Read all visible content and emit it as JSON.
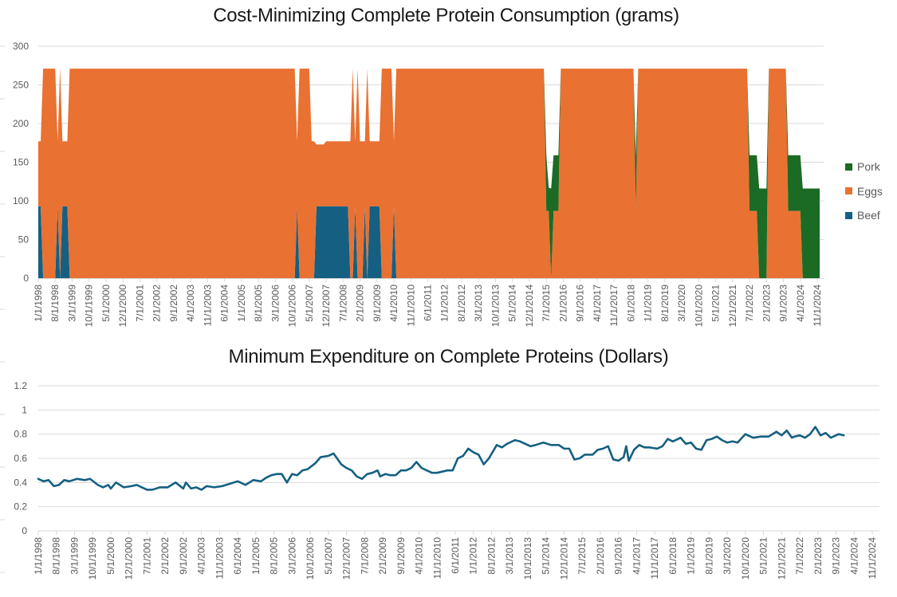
{
  "charts": [
    {
      "id": "top",
      "title": "Cost-Minimizing Complete Protein Consumption (grams)"
    },
    {
      "id": "bottom",
      "title": "Minimum Expenditure on Complete Proteins (Dollars)"
    }
  ],
  "legend": [
    {
      "name": "Pork",
      "color": "#1b6b25"
    },
    {
      "name": "Eggs",
      "color": "#e97132"
    },
    {
      "name": "Beef",
      "color": "#156082"
    }
  ],
  "chart_data": [
    {
      "type": "area",
      "stacked": true,
      "title": "Cost-Minimizing Complete Protein Consumption (grams)",
      "xlabel": "",
      "ylabel": "",
      "ylim": [
        0,
        300
      ],
      "yticks": [
        0,
        50,
        100,
        150,
        200,
        250,
        300
      ],
      "grid": true,
      "legend_position": "right",
      "x_start": "1/1/1998",
      "x_frequency": "monthly",
      "x_tick_every_months": 7,
      "xtick_labels": [
        "1/1/1998",
        "8/1/1998",
        "3/1/1999",
        "10/1/1999",
        "5/1/2000",
        "12/1/2000",
        "7/1/2001",
        "2/1/2002",
        "9/1/2002",
        "4/1/2003",
        "11/1/2003",
        "6/1/2004",
        "1/1/2005",
        "8/1/2005",
        "3/1/2006",
        "10/1/2006",
        "5/1/2007",
        "12/1/2007",
        "7/1/2008",
        "2/1/2009",
        "9/1/2009",
        "4/1/2010",
        "11/1/2010",
        "6/1/2011",
        "1/1/2012",
        "8/1/2012",
        "3/1/2013",
        "10/1/2013",
        "5/1/2014",
        "12/1/2014",
        "7/1/2015",
        "2/1/2016",
        "9/1/2016",
        "4/1/2017",
        "11/1/2017",
        "6/1/2018",
        "1/1/2019",
        "8/1/2019",
        "3/1/2020",
        "10/1/2020",
        "5/1/2021",
        "12/1/2021",
        "7/1/2022",
        "2/1/2023",
        "9/1/2023",
        "4/1/2024",
        "11/1/2024"
      ],
      "n_months": 324,
      "regimes_note": "Each segment [start_month_index, end_month_index] inclusive, month index 0 = 1/1/1998; values in grams",
      "segments": [
        {
          "from": 0,
          "to": 1,
          "beef": 93,
          "eggs": 84,
          "pork": 0
        },
        {
          "from": 2,
          "to": 7,
          "beef": 0,
          "eggs": 271,
          "pork": 0
        },
        {
          "from": 8,
          "to": 8,
          "beef": 93,
          "eggs": 84,
          "pork": 0
        },
        {
          "from": 9,
          "to": 9,
          "beef": 0,
          "eggs": 271,
          "pork": 0
        },
        {
          "from": 10,
          "to": 12,
          "beef": 93,
          "eggs": 84,
          "pork": 0
        },
        {
          "from": 13,
          "to": 106,
          "beef": 0,
          "eggs": 271,
          "pork": 0
        },
        {
          "from": 107,
          "to": 107,
          "beef": 93,
          "eggs": 84,
          "pork": 0
        },
        {
          "from": 108,
          "to": 112,
          "beef": 0,
          "eggs": 271,
          "pork": 0
        },
        {
          "from": 113,
          "to": 114,
          "beef": 0,
          "eggs": 177,
          "pork": 0
        },
        {
          "from": 115,
          "to": 118,
          "beef": 93,
          "eggs": 80,
          "pork": 0
        },
        {
          "from": 119,
          "to": 128,
          "beef": 93,
          "eggs": 84,
          "pork": 0
        },
        {
          "from": 129,
          "to": 129,
          "beef": 0,
          "eggs": 177,
          "pork": 0
        },
        {
          "from": 130,
          "to": 130,
          "beef": 0,
          "eggs": 271,
          "pork": 0
        },
        {
          "from": 131,
          "to": 131,
          "beef": 93,
          "eggs": 84,
          "pork": 0
        },
        {
          "from": 132,
          "to": 132,
          "beef": 0,
          "eggs": 271,
          "pork": 0
        },
        {
          "from": 133,
          "to": 134,
          "beef": 0,
          "eggs": 177,
          "pork": 0
        },
        {
          "from": 135,
          "to": 135,
          "beef": 93,
          "eggs": 84,
          "pork": 0
        },
        {
          "from": 136,
          "to": 136,
          "beef": 0,
          "eggs": 271,
          "pork": 0
        },
        {
          "from": 137,
          "to": 141,
          "beef": 93,
          "eggs": 84,
          "pork": 0
        },
        {
          "from": 142,
          "to": 146,
          "beef": 0,
          "eggs": 271,
          "pork": 0
        },
        {
          "from": 147,
          "to": 147,
          "beef": 93,
          "eggs": 84,
          "pork": 0
        },
        {
          "from": 148,
          "to": 209,
          "beef": 0,
          "eggs": 271,
          "pork": 0
        },
        {
          "from": 210,
          "to": 210,
          "beef": 0,
          "eggs": 87,
          "pork": 72
        },
        {
          "from": 211,
          "to": 211,
          "beef": 0,
          "eggs": 87,
          "pork": 30
        },
        {
          "from": 212,
          "to": 212,
          "beef": 0,
          "eggs": 0,
          "pork": 116
        },
        {
          "from": 213,
          "to": 215,
          "beef": 0,
          "eggs": 87,
          "pork": 72
        },
        {
          "from": 216,
          "to": 246,
          "beef": 0,
          "eggs": 271,
          "pork": 0
        },
        {
          "from": 247,
          "to": 247,
          "beef": 0,
          "eggs": 87,
          "pork": 72
        },
        {
          "from": 248,
          "to": 293,
          "beef": 0,
          "eggs": 271,
          "pork": 0
        },
        {
          "from": 294,
          "to": 297,
          "beef": 0,
          "eggs": 87,
          "pork": 72
        },
        {
          "from": 298,
          "to": 298,
          "beef": 0,
          "eggs": 0,
          "pork": 116
        },
        {
          "from": 299,
          "to": 301,
          "beef": 0,
          "eggs": 0,
          "pork": 116
        },
        {
          "from": 302,
          "to": 303,
          "beef": 0,
          "eggs": 271,
          "pork": 0
        },
        {
          "from": 304,
          "to": 309,
          "beef": 0,
          "eggs": 271,
          "pork": 0
        },
        {
          "from": 310,
          "to": 313,
          "beef": 0,
          "eggs": 87,
          "pork": 72
        },
        {
          "from": 314,
          "to": 315,
          "beef": 0,
          "eggs": 87,
          "pork": 72
        },
        {
          "from": 316,
          "to": 316,
          "beef": 0,
          "eggs": 0,
          "pork": 116
        },
        {
          "from": 317,
          "to": 323,
          "beef": 0,
          "eggs": 0,
          "pork": 116
        }
      ],
      "series_order_bottom_to_top": [
        "Beef",
        "Eggs",
        "Pork"
      ]
    },
    {
      "type": "line",
      "title": "Minimum Expenditure on Complete Proteins (Dollars)",
      "xlabel": "",
      "ylabel": "",
      "ylim": [
        0,
        1.2
      ],
      "yticks": [
        0,
        0.2,
        0.4,
        0.6,
        0.8,
        1,
        1.2
      ],
      "ytick_labels": [
        "0",
        "0.2",
        "0.4",
        "0.6",
        "0.8",
        "1",
        "1.2"
      ],
      "grid": true,
      "legend_position": "none",
      "x_start": "1/1/1998",
      "x_frequency": "monthly",
      "xtick_labels": [
        "1/1/1998",
        "8/1/1998",
        "3/1/1999",
        "10/1/1999",
        "5/1/2000",
        "12/1/2000",
        "7/1/2001",
        "2/1/2002",
        "9/1/2002",
        "4/1/2003",
        "11/1/2003",
        "6/1/2004",
        "1/1/2005",
        "8/1/2005",
        "3/1/2006",
        "10/1/2006",
        "5/1/2007",
        "12/1/2007",
        "7/1/2008",
        "2/1/2009",
        "9/1/2009",
        "4/1/2010",
        "11/1/2010",
        "6/1/2011",
        "1/1/2012",
        "8/1/2012",
        "3/1/2013",
        "10/1/2013",
        "5/1/2014",
        "12/1/2014",
        "7/1/2015",
        "2/1/2016",
        "9/1/2016",
        "4/1/2017",
        "11/1/2017",
        "6/1/2018",
        "1/1/2019",
        "8/1/2019",
        "3/1/2020",
        "10/1/2020",
        "5/1/2021",
        "12/1/2021",
        "7/1/2022",
        "2/1/2023",
        "9/1/2023",
        "4/1/2024",
        "11/1/2024"
      ],
      "series": [
        {
          "name": "Minimum Expenditure",
          "color": "#156082",
          "points_note": "[month_index, dollars]; month_index 0 = 1/1/1998; linear between points",
          "points": [
            [
              0,
              0.43
            ],
            [
              2,
              0.41
            ],
            [
              4,
              0.42
            ],
            [
              6,
              0.37
            ],
            [
              8,
              0.38
            ],
            [
              10,
              0.42
            ],
            [
              12,
              0.41
            ],
            [
              15,
              0.43
            ],
            [
              18,
              0.42
            ],
            [
              20,
              0.43
            ],
            [
              23,
              0.38
            ],
            [
              25,
              0.36
            ],
            [
              27,
              0.38
            ],
            [
              28,
              0.35
            ],
            [
              30,
              0.4
            ],
            [
              33,
              0.36
            ],
            [
              36,
              0.37
            ],
            [
              38,
              0.38
            ],
            [
              40,
              0.36
            ],
            [
              42,
              0.34
            ],
            [
              44,
              0.34
            ],
            [
              47,
              0.36
            ],
            [
              50,
              0.36
            ],
            [
              53,
              0.4
            ],
            [
              56,
              0.35
            ],
            [
              57,
              0.4
            ],
            [
              59,
              0.35
            ],
            [
              61,
              0.36
            ],
            [
              63,
              0.34
            ],
            [
              65,
              0.37
            ],
            [
              68,
              0.36
            ],
            [
              71,
              0.37
            ],
            [
              74,
              0.39
            ],
            [
              77,
              0.41
            ],
            [
              80,
              0.38
            ],
            [
              83,
              0.42
            ],
            [
              86,
              0.41
            ],
            [
              88,
              0.44
            ],
            [
              90,
              0.46
            ],
            [
              92,
              0.47
            ],
            [
              94,
              0.47
            ],
            [
              96,
              0.4
            ],
            [
              98,
              0.47
            ],
            [
              100,
              0.46
            ],
            [
              102,
              0.5
            ],
            [
              104,
              0.51
            ],
            [
              107,
              0.56
            ],
            [
              109,
              0.61
            ],
            [
              112,
              0.62
            ],
            [
              114,
              0.64
            ],
            [
              117,
              0.55
            ],
            [
              119,
              0.52
            ],
            [
              121,
              0.5
            ],
            [
              123,
              0.45
            ],
            [
              125,
              0.43
            ],
            [
              127,
              0.47
            ],
            [
              129,
              0.48
            ],
            [
              131,
              0.5
            ],
            [
              132,
              0.45
            ],
            [
              134,
              0.47
            ],
            [
              136,
              0.46
            ],
            [
              138,
              0.46
            ],
            [
              140,
              0.5
            ],
            [
              142,
              0.5
            ],
            [
              144,
              0.52
            ],
            [
              146,
              0.57
            ],
            [
              148,
              0.52
            ],
            [
              150,
              0.5
            ],
            [
              152,
              0.48
            ],
            [
              154,
              0.48
            ],
            [
              156,
              0.49
            ],
            [
              158,
              0.5
            ],
            [
              160,
              0.5
            ],
            [
              162,
              0.6
            ],
            [
              164,
              0.62
            ],
            [
              166,
              0.68
            ],
            [
              168,
              0.65
            ],
            [
              170,
              0.63
            ],
            [
              172,
              0.55
            ],
            [
              174,
              0.6
            ],
            [
              177,
              0.71
            ],
            [
              179,
              0.69
            ],
            [
              181,
              0.72
            ],
            [
              184,
              0.75
            ],
            [
              186,
              0.74
            ],
            [
              188,
              0.72
            ],
            [
              190,
              0.7
            ],
            [
              192,
              0.71
            ],
            [
              195,
              0.73
            ],
            [
              198,
              0.71
            ],
            [
              201,
              0.71
            ],
            [
              203,
              0.68
            ],
            [
              205,
              0.68
            ],
            [
              207,
              0.59
            ],
            [
              209,
              0.6
            ],
            [
              211,
              0.63
            ],
            [
              214,
              0.63
            ],
            [
              216,
              0.67
            ],
            [
              218,
              0.68
            ],
            [
              220,
              0.7
            ],
            [
              222,
              0.59
            ],
            [
              224,
              0.58
            ],
            [
              226,
              0.61
            ],
            [
              227,
              0.7
            ],
            [
              228,
              0.58
            ],
            [
              230,
              0.67
            ],
            [
              232,
              0.71
            ],
            [
              234,
              0.69
            ],
            [
              236,
              0.69
            ],
            [
              239,
              0.68
            ],
            [
              241,
              0.7
            ],
            [
              243,
              0.76
            ],
            [
              245,
              0.74
            ],
            [
              248,
              0.77
            ],
            [
              250,
              0.72
            ],
            [
              252,
              0.73
            ],
            [
              254,
              0.68
            ],
            [
              256,
              0.67
            ],
            [
              258,
              0.75
            ],
            [
              260,
              0.76
            ],
            [
              262,
              0.78
            ],
            [
              264,
              0.75
            ],
            [
              266,
              0.73
            ],
            [
              268,
              0.74
            ],
            [
              270,
              0.73
            ],
            [
              273,
              0.8
            ],
            [
              276,
              0.77
            ],
            [
              279,
              0.78
            ],
            [
              282,
              0.78
            ],
            [
              285,
              0.82
            ],
            [
              287,
              0.79
            ],
            [
              289,
              0.83
            ],
            [
              291,
              0.77
            ],
            [
              292,
              0.78
            ],
            [
              294,
              0.79
            ],
            [
              296,
              0.77
            ],
            [
              298,
              0.8
            ],
            [
              300,
              0.86
            ],
            [
              302,
              0.79
            ],
            [
              304,
              0.81
            ],
            [
              306,
              0.77
            ],
            [
              307,
              0.78
            ],
            [
              309,
              0.8
            ],
            [
              311,
              0.79
            ]
          ]
        }
      ]
    }
  ]
}
